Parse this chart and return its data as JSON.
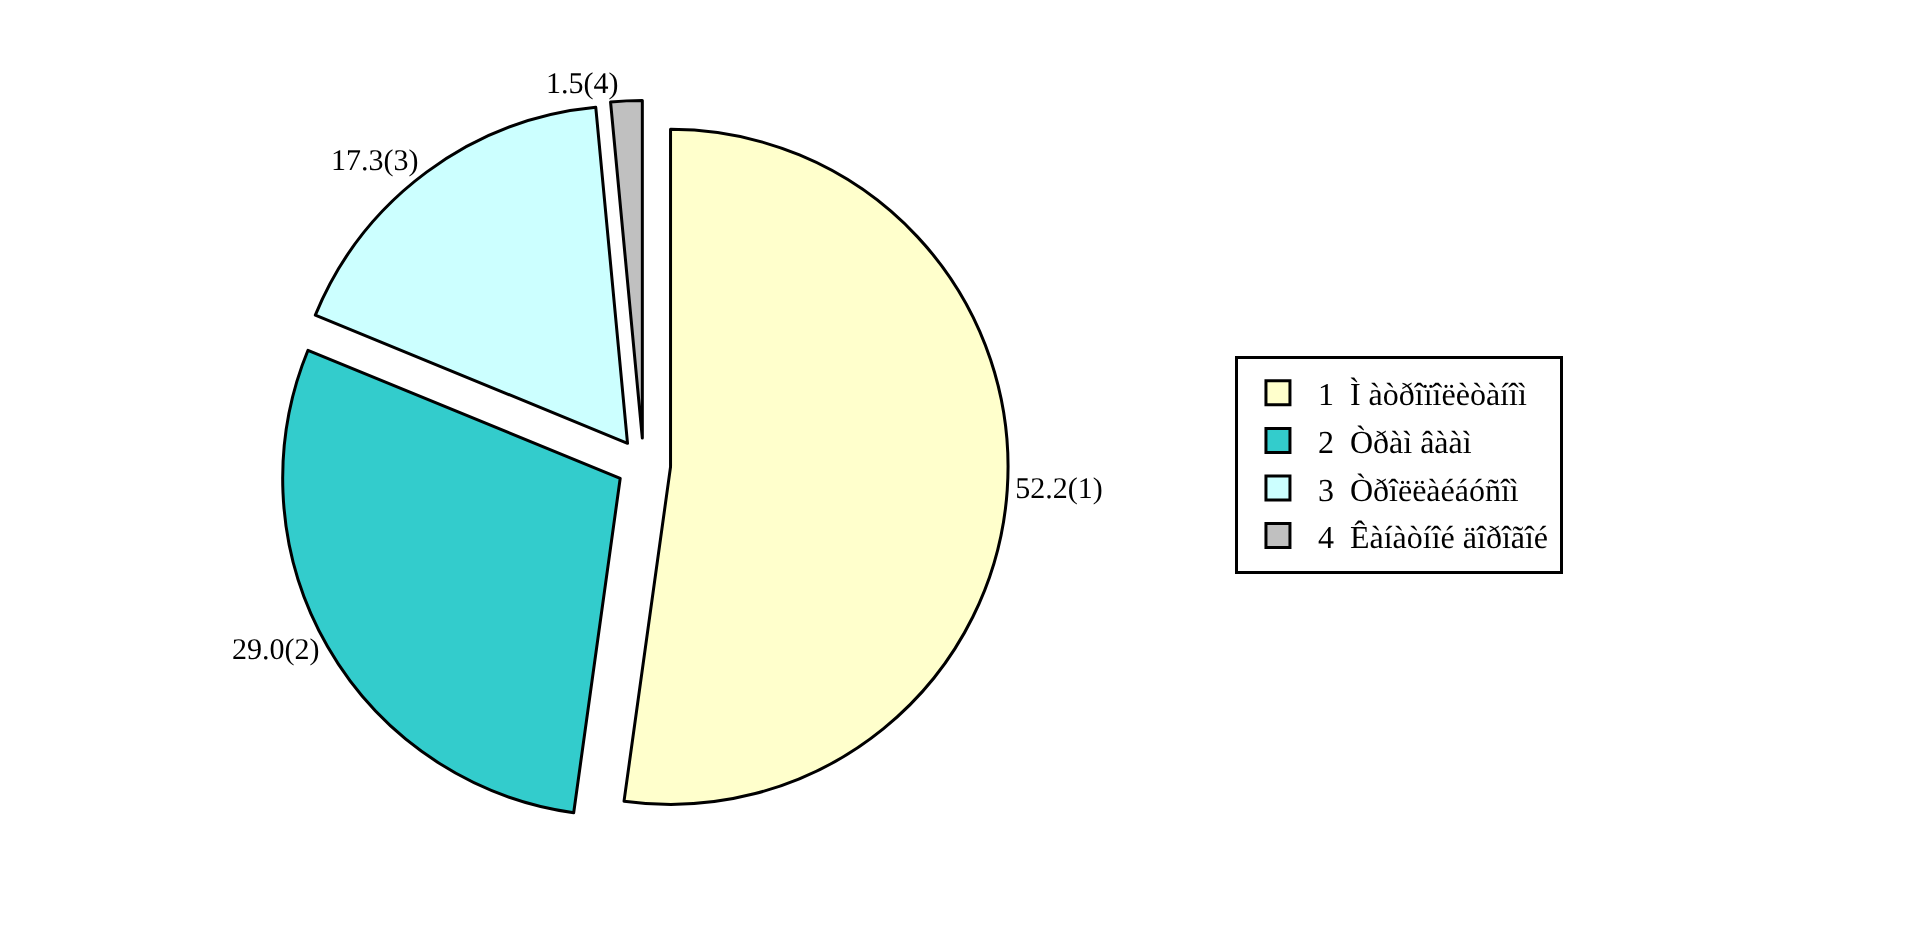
{
  "chart_data": {
    "type": "pie",
    "categories": [
      "1  Ì àòðîïîëèòàíîì",
      "2  Òðàì âààì",
      "3  Òðîëëàéáóñîì",
      "4  Êàíàòíîé äîðîãîé"
    ],
    "values": [
      52.2,
      29.0,
      17.3,
      1.5
    ],
    "value_labels": [
      "52.2(1)",
      "29.0(2)",
      "17.3(3)",
      "1.5(4)"
    ],
    "colors": [
      "#ffffcc",
      "#33cccc",
      "#ccffff",
      "#c0c0c0"
    ],
    "legend": "right"
  }
}
